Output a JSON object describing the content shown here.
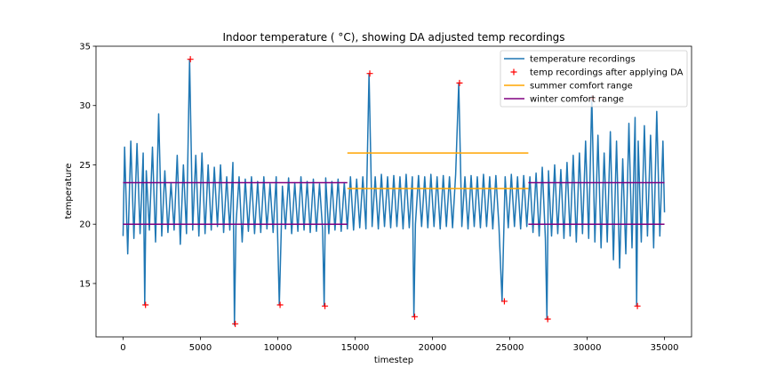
{
  "chart_data": {
    "type": "line",
    "title": "Indoor temperature ( °C), showing DA adjusted temp recordings",
    "xlabel": "timestep",
    "ylabel": "temperature",
    "xlim": [
      -1750,
      36750
    ],
    "ylim": [
      10.5,
      35.0
    ],
    "xticks": [
      0,
      5000,
      10000,
      15000,
      20000,
      25000,
      30000,
      35000
    ],
    "yticks": [
      15,
      20,
      25,
      30,
      35
    ],
    "grid": false,
    "legend_position": "top-right",
    "series": [
      {
        "name": "temperature recordings",
        "kind": "line",
        "color": "#1f77b4",
        "description_points": [
          [
            0,
            19.0
          ],
          [
            100,
            26.5
          ],
          [
            300,
            17.5
          ],
          [
            500,
            27.0
          ],
          [
            700,
            18.8
          ],
          [
            900,
            26.8
          ],
          [
            1100,
            19.2
          ],
          [
            1300,
            26.0
          ],
          [
            1400,
            13.2
          ],
          [
            1500,
            24.5
          ],
          [
            1700,
            19.5
          ],
          [
            1900,
            26.5
          ],
          [
            2100,
            18.5
          ],
          [
            2300,
            29.3
          ],
          [
            2500,
            19.0
          ],
          [
            2700,
            24.5
          ],
          [
            2900,
            19.3
          ],
          [
            3100,
            23.5
          ],
          [
            3300,
            19.5
          ],
          [
            3500,
            25.8
          ],
          [
            3700,
            18.3
          ],
          [
            3900,
            25.0
          ],
          [
            4100,
            19.2
          ],
          [
            4300,
            33.9
          ],
          [
            4500,
            19.5
          ],
          [
            4700,
            25.8
          ],
          [
            4900,
            19.0
          ],
          [
            5100,
            26.0
          ],
          [
            5300,
            19.2
          ],
          [
            5500,
            25.0
          ],
          [
            5700,
            19.5
          ],
          [
            5900,
            24.8
          ],
          [
            6100,
            19.8
          ],
          [
            6300,
            25.0
          ],
          [
            6500,
            19.3
          ],
          [
            6700,
            24.0
          ],
          [
            6900,
            19.5
          ],
          [
            7100,
            25.2
          ],
          [
            7200,
            11.5
          ],
          [
            7300,
            20.0
          ],
          [
            7500,
            24.0
          ],
          [
            7700,
            18.5
          ],
          [
            7900,
            23.8
          ],
          [
            8100,
            19.4
          ],
          [
            8300,
            24.0
          ],
          [
            8500,
            19.2
          ],
          [
            8700,
            23.6
          ],
          [
            8900,
            19.3
          ],
          [
            9100,
            24.0
          ],
          [
            9300,
            19.6
          ],
          [
            9500,
            23.4
          ],
          [
            9700,
            19.3
          ],
          [
            9900,
            24.0
          ],
          [
            10100,
            13.2
          ],
          [
            10300,
            23.2
          ],
          [
            10500,
            19.6
          ],
          [
            10700,
            23.9
          ],
          [
            10900,
            19.2
          ],
          [
            11100,
            23.5
          ],
          [
            11300,
            19.4
          ],
          [
            11500,
            24.0
          ],
          [
            11700,
            19.5
          ],
          [
            11900,
            23.6
          ],
          [
            12100,
            19.3
          ],
          [
            12300,
            23.8
          ],
          [
            12500,
            19.4
          ],
          [
            12700,
            23.4
          ],
          [
            12900,
            19.5
          ],
          [
            13000,
            13.1
          ],
          [
            13100,
            23.9
          ],
          [
            13300,
            19.2
          ],
          [
            13500,
            23.6
          ],
          [
            13700,
            19.5
          ],
          [
            13900,
            23.8
          ],
          [
            14100,
            19.4
          ],
          [
            14300,
            23.5
          ],
          [
            14500,
            19.6
          ],
          [
            14700,
            24.0
          ],
          [
            14900,
            19.5
          ],
          [
            15100,
            23.8
          ],
          [
            15300,
            19.7
          ],
          [
            15500,
            24.0
          ],
          [
            15700,
            19.6
          ],
          [
            15900,
            32.7
          ],
          [
            16100,
            19.8
          ],
          [
            16300,
            24.0
          ],
          [
            16500,
            19.6
          ],
          [
            16700,
            24.2
          ],
          [
            16900,
            19.8
          ],
          [
            17100,
            24.0
          ],
          [
            17300,
            19.7
          ],
          [
            17500,
            24.1
          ],
          [
            17700,
            19.8
          ],
          [
            17900,
            24.0
          ],
          [
            18100,
            19.6
          ],
          [
            18300,
            24.2
          ],
          [
            18500,
            19.7
          ],
          [
            18700,
            24.0
          ],
          [
            18800,
            12.2
          ],
          [
            18900,
            20.0
          ],
          [
            19100,
            24.1
          ],
          [
            19300,
            19.8
          ],
          [
            19500,
            24.0
          ],
          [
            19700,
            19.7
          ],
          [
            19900,
            24.2
          ],
          [
            20100,
            19.8
          ],
          [
            20300,
            24.0
          ],
          [
            20500,
            19.6
          ],
          [
            20700,
            24.1
          ],
          [
            20900,
            19.8
          ],
          [
            21100,
            24.0
          ],
          [
            21300,
            19.7
          ],
          [
            21500,
            24.2
          ],
          [
            21700,
            31.9
          ],
          [
            21900,
            19.8
          ],
          [
            22100,
            24.0
          ],
          [
            22300,
            19.6
          ],
          [
            22500,
            24.1
          ],
          [
            22700,
            19.8
          ],
          [
            22900,
            24.0
          ],
          [
            23100,
            19.7
          ],
          [
            23300,
            24.2
          ],
          [
            23500,
            19.8
          ],
          [
            23700,
            24.0
          ],
          [
            23900,
            19.6
          ],
          [
            24100,
            24.1
          ],
          [
            24300,
            19.8
          ],
          [
            24500,
            13.5
          ],
          [
            24700,
            24.0
          ],
          [
            24900,
            19.7
          ],
          [
            25100,
            24.2
          ],
          [
            25300,
            19.8
          ],
          [
            25500,
            24.0
          ],
          [
            25700,
            19.6
          ],
          [
            25900,
            24.1
          ],
          [
            26100,
            19.8
          ],
          [
            26300,
            24.0
          ],
          [
            26500,
            19.3
          ],
          [
            26700,
            24.3
          ],
          [
            26900,
            19.0
          ],
          [
            27100,
            24.8
          ],
          [
            27300,
            18.8
          ],
          [
            27400,
            12.0
          ],
          [
            27500,
            24.5
          ],
          [
            27700,
            19.0
          ],
          [
            27900,
            25.0
          ],
          [
            28100,
            19.2
          ],
          [
            28300,
            24.6
          ],
          [
            28500,
            18.8
          ],
          [
            28700,
            25.2
          ],
          [
            28900,
            19.0
          ],
          [
            29100,
            25.8
          ],
          [
            29300,
            18.5
          ],
          [
            29500,
            26.0
          ],
          [
            29700,
            19.2
          ],
          [
            29900,
            27.0
          ],
          [
            30100,
            18.8
          ],
          [
            30300,
            30.8
          ],
          [
            30500,
            18.5
          ],
          [
            30700,
            27.5
          ],
          [
            30900,
            18.0
          ],
          [
            31100,
            26.0
          ],
          [
            31300,
            18.5
          ],
          [
            31500,
            27.8
          ],
          [
            31700,
            17.0
          ],
          [
            31900,
            27.0
          ],
          [
            32100,
            16.3
          ],
          [
            32300,
            25.5
          ],
          [
            32500,
            17.5
          ],
          [
            32700,
            28.5
          ],
          [
            32900,
            18.0
          ],
          [
            33100,
            29.0
          ],
          [
            33200,
            13.1
          ],
          [
            33300,
            27.0
          ],
          [
            33500,
            18.5
          ],
          [
            33700,
            28.3
          ],
          [
            33900,
            19.0
          ],
          [
            34100,
            27.5
          ],
          [
            34300,
            18.0
          ],
          [
            34500,
            29.5
          ],
          [
            34700,
            19.0
          ],
          [
            34900,
            27.0
          ],
          [
            35000,
            21.0
          ]
        ]
      },
      {
        "name": "temp recordings after applying DA",
        "kind": "marker",
        "marker": "+",
        "color": "#ff0000",
        "points": [
          [
            1450,
            13.2
          ],
          [
            4350,
            33.9
          ],
          [
            7250,
            11.6
          ],
          [
            10150,
            13.2
          ],
          [
            13050,
            13.1
          ],
          [
            15950,
            32.7
          ],
          [
            18850,
            12.2
          ],
          [
            21750,
            31.9
          ],
          [
            24650,
            13.5
          ],
          [
            27450,
            12.0
          ],
          [
            30350,
            30.6
          ],
          [
            33250,
            13.1
          ]
        ]
      },
      {
        "name": "summer comfort range",
        "kind": "range",
        "color": "#ffa500",
        "x": [
          14500,
          26200
        ],
        "low": 23.0,
        "high": 26.0
      },
      {
        "name": "winter comfort range",
        "kind": "range",
        "color": "#800080",
        "segments": [
          {
            "x": [
              0,
              14500
            ],
            "low": 20.0,
            "high": 23.5
          },
          {
            "x": [
              26200,
              35000
            ],
            "low": 20.0,
            "high": 23.5
          }
        ]
      }
    ]
  }
}
